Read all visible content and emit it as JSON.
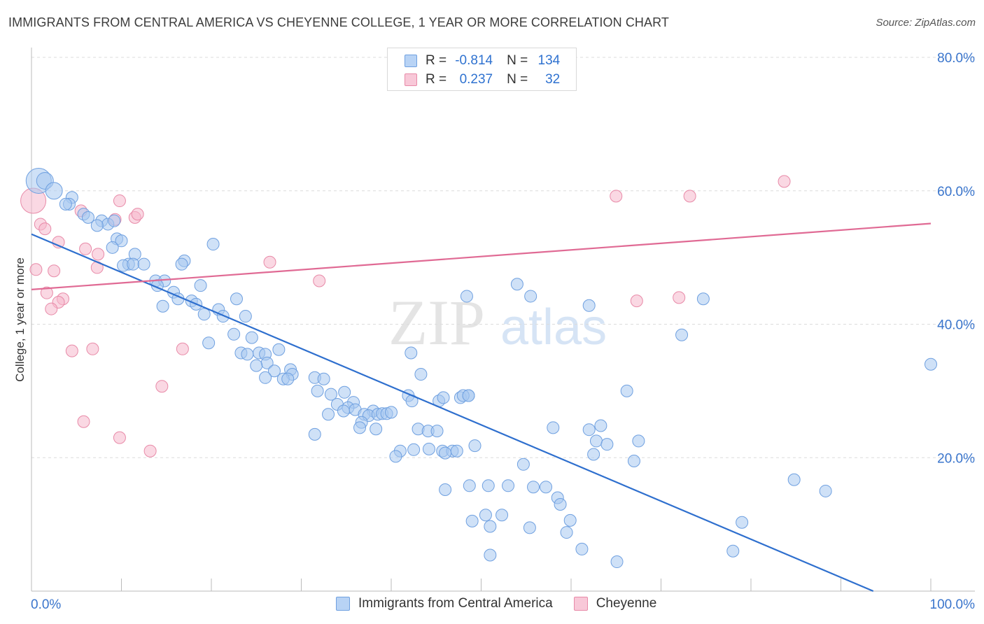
{
  "title": "IMMIGRANTS FROM CENTRAL AMERICA VS CHEYENNE COLLEGE, 1 YEAR OR MORE CORRELATION CHART",
  "source": "Source: ZipAtlas.com",
  "watermark": {
    "zip": "ZIP",
    "atlas": "atlas"
  },
  "legend_top": {
    "rows": [
      {
        "r_label": "R =",
        "r_value": "-0.814",
        "n_label": "N =",
        "n_value": "134"
      },
      {
        "r_label": "R =",
        "r_value": "0.237",
        "n_label": "N =",
        "n_value": "32"
      }
    ]
  },
  "legend_bottom": {
    "items": [
      "Immigrants from Central America",
      "Cheyenne"
    ]
  },
  "colors": {
    "blue_fill": "#a8c8f0",
    "blue_stroke": "#6fa0e0",
    "blue_line": "#2e6fce",
    "pink_fill": "#f5b8cc",
    "pink_stroke": "#e88aa8",
    "pink_line": "#e06a94",
    "axis_label": "#3a75cc",
    "grid": "#dcdcdc"
  },
  "chart_data": {
    "type": "scatter",
    "title": "IMMIGRANTS FROM CENTRAL AMERICA VS CHEYENNE COLLEGE, 1 YEAR OR MORE CORRELATION CHART",
    "xlabel": "",
    "ylabel": "College, 1 year or more",
    "xlim": [
      0,
      100
    ],
    "ylim": [
      0,
      80
    ],
    "x_tick_labels": [
      "0.0%",
      "100.0%"
    ],
    "y_ticks": [
      20,
      40,
      60,
      80
    ],
    "y_tick_labels": [
      "20.0%",
      "40.0%",
      "60.0%",
      "80.0%"
    ],
    "grid": true,
    "legend_position": "top-center",
    "series": [
      {
        "name": "Immigrants from Central America",
        "r": -0.814,
        "n": 134,
        "trend": {
          "x": [
            0,
            93.6
          ],
          "y": [
            53.5,
            0
          ]
        },
        "points": [
          [
            0.8,
            61.5,
            3
          ],
          [
            1.5,
            61.5,
            2
          ],
          [
            2.5,
            60,
            2
          ],
          [
            4.5,
            59,
            1
          ],
          [
            4.2,
            58,
            1
          ],
          [
            3.8,
            58,
            1
          ],
          [
            5.8,
            56.5,
            1
          ],
          [
            6.3,
            56,
            1
          ],
          [
            7.8,
            55.5,
            1
          ],
          [
            8.5,
            55,
            1
          ],
          [
            9.2,
            55.5,
            1
          ],
          [
            7.3,
            54.8,
            1
          ],
          [
            9.5,
            52.8,
            1
          ],
          [
            10.0,
            52.5,
            1
          ],
          [
            9.0,
            51.5,
            1
          ],
          [
            11.5,
            50.5,
            1
          ],
          [
            10.8,
            49,
            1
          ],
          [
            10.2,
            48.8,
            1
          ],
          [
            11.3,
            49,
            1
          ],
          [
            12.5,
            49,
            1
          ],
          [
            17.0,
            49.5,
            1
          ],
          [
            16.7,
            49,
            1
          ],
          [
            20.2,
            52,
            1
          ],
          [
            13.8,
            46.5,
            1
          ],
          [
            14.8,
            46.5,
            1
          ],
          [
            14.0,
            45.8,
            1
          ],
          [
            18.8,
            45.8,
            1
          ],
          [
            15.8,
            44.8,
            1
          ],
          [
            16.3,
            43.8,
            1
          ],
          [
            17.8,
            43.5,
            1
          ],
          [
            18.3,
            43,
            1
          ],
          [
            14.6,
            42.7,
            1
          ],
          [
            19.2,
            41.5,
            1
          ],
          [
            20.8,
            42.2,
            1
          ],
          [
            21.3,
            41.2,
            1
          ],
          [
            22.8,
            43.8,
            1
          ],
          [
            23.8,
            41.2,
            1
          ],
          [
            22.5,
            38.5,
            1
          ],
          [
            24.5,
            38,
            1
          ],
          [
            19.7,
            37.2,
            1
          ],
          [
            23.3,
            35.7,
            1
          ],
          [
            25.3,
            35.7,
            1
          ],
          [
            24.0,
            35.5,
            1
          ],
          [
            26.0,
            35.5,
            1
          ],
          [
            27.5,
            36.2,
            1
          ],
          [
            26.2,
            34.2,
            1
          ],
          [
            25.0,
            33.8,
            1
          ],
          [
            27.0,
            33,
            1
          ],
          [
            28.8,
            33.2,
            1
          ],
          [
            29.0,
            32.5,
            1
          ],
          [
            26.0,
            32,
            1
          ],
          [
            28.0,
            31.8,
            1
          ],
          [
            28.5,
            31.8,
            1
          ],
          [
            31.5,
            32,
            1
          ],
          [
            32.5,
            31.8,
            1
          ],
          [
            31.8,
            30,
            1
          ],
          [
            33.3,
            29.5,
            1
          ],
          [
            34.8,
            29.8,
            1
          ],
          [
            34.0,
            28,
            1
          ],
          [
            35.8,
            28.3,
            1
          ],
          [
            35.2,
            27.5,
            1
          ],
          [
            33.0,
            26.5,
            1
          ],
          [
            34.7,
            27,
            1
          ],
          [
            36.0,
            27.2,
            1
          ],
          [
            38.0,
            27,
            1
          ],
          [
            37.0,
            26.5,
            1
          ],
          [
            37.5,
            26.3,
            1
          ],
          [
            38.5,
            26.5,
            1
          ],
          [
            39.0,
            26.6,
            1
          ],
          [
            39.5,
            26.6,
            1
          ],
          [
            40.0,
            26.8,
            1
          ],
          [
            36.7,
            25.3,
            1
          ],
          [
            38.3,
            24.3,
            1
          ],
          [
            36.5,
            24.5,
            1
          ],
          [
            31.5,
            23.5,
            1
          ],
          [
            42.2,
            35.7,
            1
          ],
          [
            43.3,
            32.5,
            1
          ],
          [
            41.9,
            29.3,
            1
          ],
          [
            42.3,
            28.5,
            1
          ],
          [
            45.3,
            28.5,
            1
          ],
          [
            47.7,
            29.0,
            1
          ],
          [
            45.8,
            29,
            1
          ],
          [
            43.0,
            24.3,
            1
          ],
          [
            44.1,
            24.0,
            1
          ],
          [
            45.1,
            24.0,
            1
          ],
          [
            41.0,
            21.0,
            1
          ],
          [
            42.5,
            21.2,
            1
          ],
          [
            44.2,
            21.3,
            1
          ],
          [
            45.7,
            21.0,
            1
          ],
          [
            46.8,
            21.0,
            1
          ],
          [
            49.3,
            21.8,
            1
          ],
          [
            40.5,
            20.2,
            1
          ],
          [
            46.0,
            20.7,
            1
          ],
          [
            47.3,
            21.0,
            1
          ],
          [
            48.6,
            29.3,
            1
          ],
          [
            48.4,
            44.2,
            1
          ],
          [
            54.0,
            46,
            1
          ],
          [
            55.5,
            44.2,
            1
          ],
          [
            62.0,
            42.8,
            1
          ],
          [
            48.0,
            29.3,
            1
          ],
          [
            48.6,
            29.3,
            1
          ],
          [
            66.2,
            30,
            1
          ],
          [
            58.0,
            24.5,
            1
          ],
          [
            62.0,
            24.2,
            1
          ],
          [
            63.3,
            24.8,
            1
          ],
          [
            62.8,
            22.5,
            1
          ],
          [
            64.0,
            22.0,
            1
          ],
          [
            62.5,
            20.5,
            1
          ],
          [
            67.5,
            22.5,
            1
          ],
          [
            67.0,
            19.5,
            1
          ],
          [
            54.7,
            19.0,
            1
          ],
          [
            46.0,
            15.2,
            1
          ],
          [
            48.7,
            15.8,
            1
          ],
          [
            50.8,
            15.8,
            1
          ],
          [
            53.0,
            15.8,
            1
          ],
          [
            55.8,
            15.6,
            1
          ],
          [
            57.2,
            15.6,
            1
          ],
          [
            58.5,
            14.0,
            1
          ],
          [
            58.8,
            13.0,
            1
          ],
          [
            52.3,
            11.4,
            1
          ],
          [
            49.0,
            10.5,
            1
          ],
          [
            50.5,
            11.4,
            1
          ],
          [
            51.0,
            9.7,
            1
          ],
          [
            55.4,
            9.5,
            1
          ],
          [
            59.9,
            10.6,
            1
          ],
          [
            59.5,
            8.8,
            1
          ],
          [
            61.2,
            6.3,
            1
          ],
          [
            51.0,
            5.4,
            1
          ],
          [
            65.1,
            4.4,
            1
          ],
          [
            72.3,
            38.4,
            1
          ],
          [
            74.7,
            43.8,
            1
          ],
          [
            84.8,
            16.7,
            1
          ],
          [
            88.3,
            15.0,
            1
          ],
          [
            79.0,
            10.3,
            1
          ],
          [
            78.0,
            6.0,
            1
          ],
          [
            100.0,
            34.0,
            1
          ]
        ]
      },
      {
        "name": "Cheyenne",
        "r": 0.237,
        "n": 32,
        "trend": {
          "x": [
            0,
            100
          ],
          "y": [
            45.2,
            55.1
          ]
        },
        "points": [
          [
            0.2,
            58.5,
            3
          ],
          [
            1.0,
            55.0,
            1
          ],
          [
            1.5,
            54.3,
            1
          ],
          [
            3.0,
            52.3,
            1
          ],
          [
            5.5,
            57.0,
            1
          ],
          [
            6.0,
            51.3,
            1
          ],
          [
            7.4,
            50.5,
            1
          ],
          [
            9.3,
            55.7,
            1
          ],
          [
            9.8,
            58.5,
            1
          ],
          [
            11.5,
            56.0,
            1
          ],
          [
            11.8,
            56.5,
            1
          ],
          [
            0.5,
            48.2,
            1
          ],
          [
            2.5,
            48.0,
            1
          ],
          [
            3.5,
            43.8,
            1
          ],
          [
            3.0,
            43.3,
            1
          ],
          [
            1.7,
            44.7,
            1
          ],
          [
            2.2,
            42.3,
            1
          ],
          [
            7.3,
            48.5,
            1
          ],
          [
            26.5,
            49.3,
            1
          ],
          [
            32.0,
            46.5,
            1
          ],
          [
            4.5,
            36.0,
            1
          ],
          [
            6.8,
            36.3,
            1
          ],
          [
            16.8,
            36.3,
            1
          ],
          [
            14.5,
            30.7,
            1
          ],
          [
            5.8,
            25.4,
            1
          ],
          [
            9.8,
            23.0,
            1
          ],
          [
            13.2,
            21.0,
            1
          ],
          [
            65.0,
            59.2,
            1
          ],
          [
            73.2,
            59.2,
            1
          ],
          [
            83.7,
            61.4,
            1
          ],
          [
            67.3,
            43.5,
            1
          ],
          [
            72.0,
            44.0,
            1
          ]
        ]
      }
    ]
  }
}
